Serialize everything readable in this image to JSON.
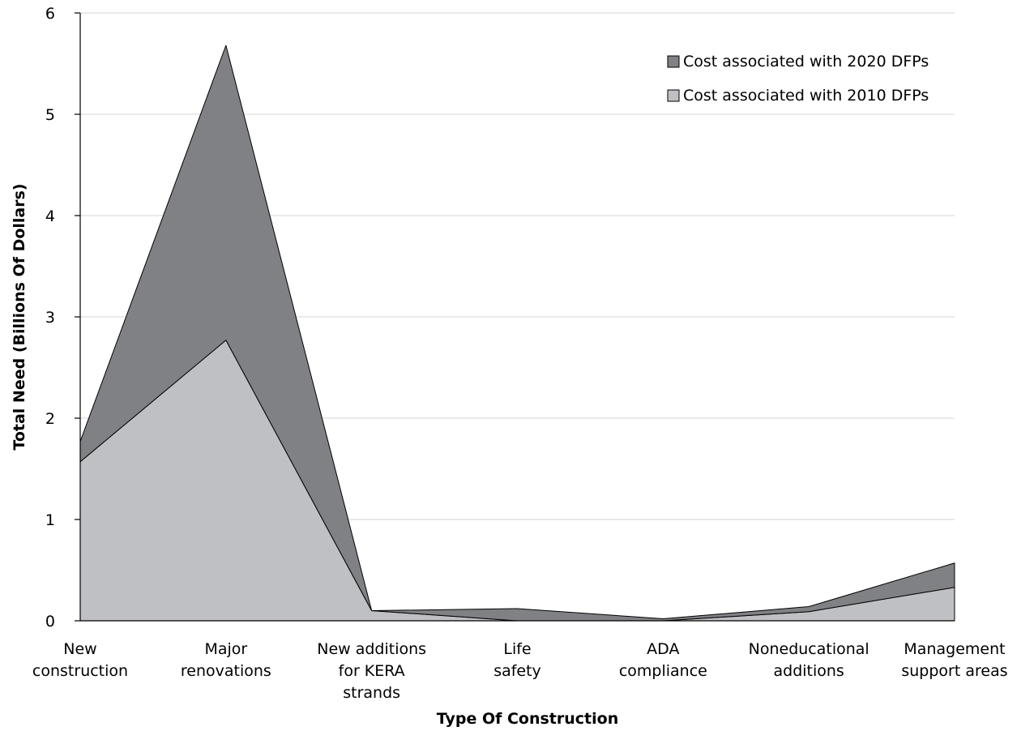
{
  "chart_data": {
    "type": "area",
    "stacked": true,
    "categories": [
      [
        "New",
        "construction"
      ],
      [
        "Major",
        "renovations"
      ],
      [
        "New additions",
        "for KERA",
        "strands"
      ],
      [
        "Life",
        "safety"
      ],
      [
        "ADA",
        "compliance"
      ],
      [
        "Noneducational",
        "additions"
      ],
      [
        "Management",
        "support areas"
      ]
    ],
    "series": [
      {
        "name": "Cost associated with 2010 DFPs",
        "color": "#bfc0c3",
        "values": [
          1.57,
          2.77,
          0.1,
          0.0,
          0.0,
          0.09,
          0.33
        ]
      },
      {
        "name": "Cost associated with 2020 DFPs",
        "color": "#808184",
        "values": [
          0.2,
          2.91,
          0.0,
          0.12,
          0.02,
          0.05,
          0.24
        ]
      }
    ],
    "xlabel": "Type Of Construction",
    "ylabel": "Total Need (Billions Of Dollars)",
    "ylim": [
      0,
      6
    ],
    "yticks": [
      0,
      1,
      2,
      3,
      4,
      5,
      6
    ],
    "grid": true,
    "legend_position": "top-right"
  }
}
